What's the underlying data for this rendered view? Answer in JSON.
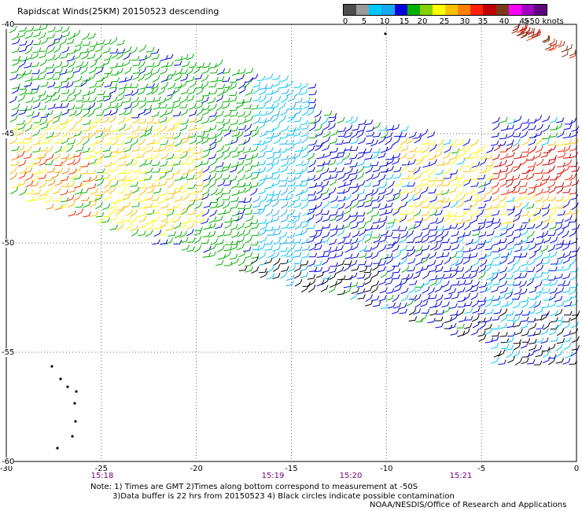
{
  "title": "Rapidscat Winds(25KM) 20150523 descending",
  "legend": {
    "colors": [
      "#4d4d4d",
      "#9b9b9b",
      "#00c8ff",
      "#18a8f0",
      "#0000dd",
      "#00b000",
      "#84d000",
      "#ffff00",
      "#ffc000",
      "#ff8000",
      "#ff2000",
      "#c00000",
      "#7a3a1a",
      "#ff00ff",
      "#a000c0",
      "#600080"
    ],
    "labels": [
      "0",
      "5",
      "10",
      "15",
      "20",
      "25",
      "30",
      "35",
      "40",
      "45",
      ">50 knots"
    ]
  },
  "map": {
    "x_ticks": [
      "-30",
      "-25",
      "-20",
      "-15",
      "-10",
      "-5",
      "0"
    ],
    "y_ticks": [
      "-40",
      "-45",
      "-50",
      "-55",
      "-60"
    ],
    "times": [
      "15:18",
      "15:19",
      "15:20",
      "15:21"
    ],
    "grid": "dotted"
  },
  "notes": {
    "line1": "Note: 1) Times are GMT 2)Times along bottom correspond to measurement at -50S",
    "line2": "3)Data buffer is 22 hrs from 20150523 4) Black circles indicate possible contamination",
    "credit": "NOAA/NESDIS/Office of Research and Applications"
  }
}
